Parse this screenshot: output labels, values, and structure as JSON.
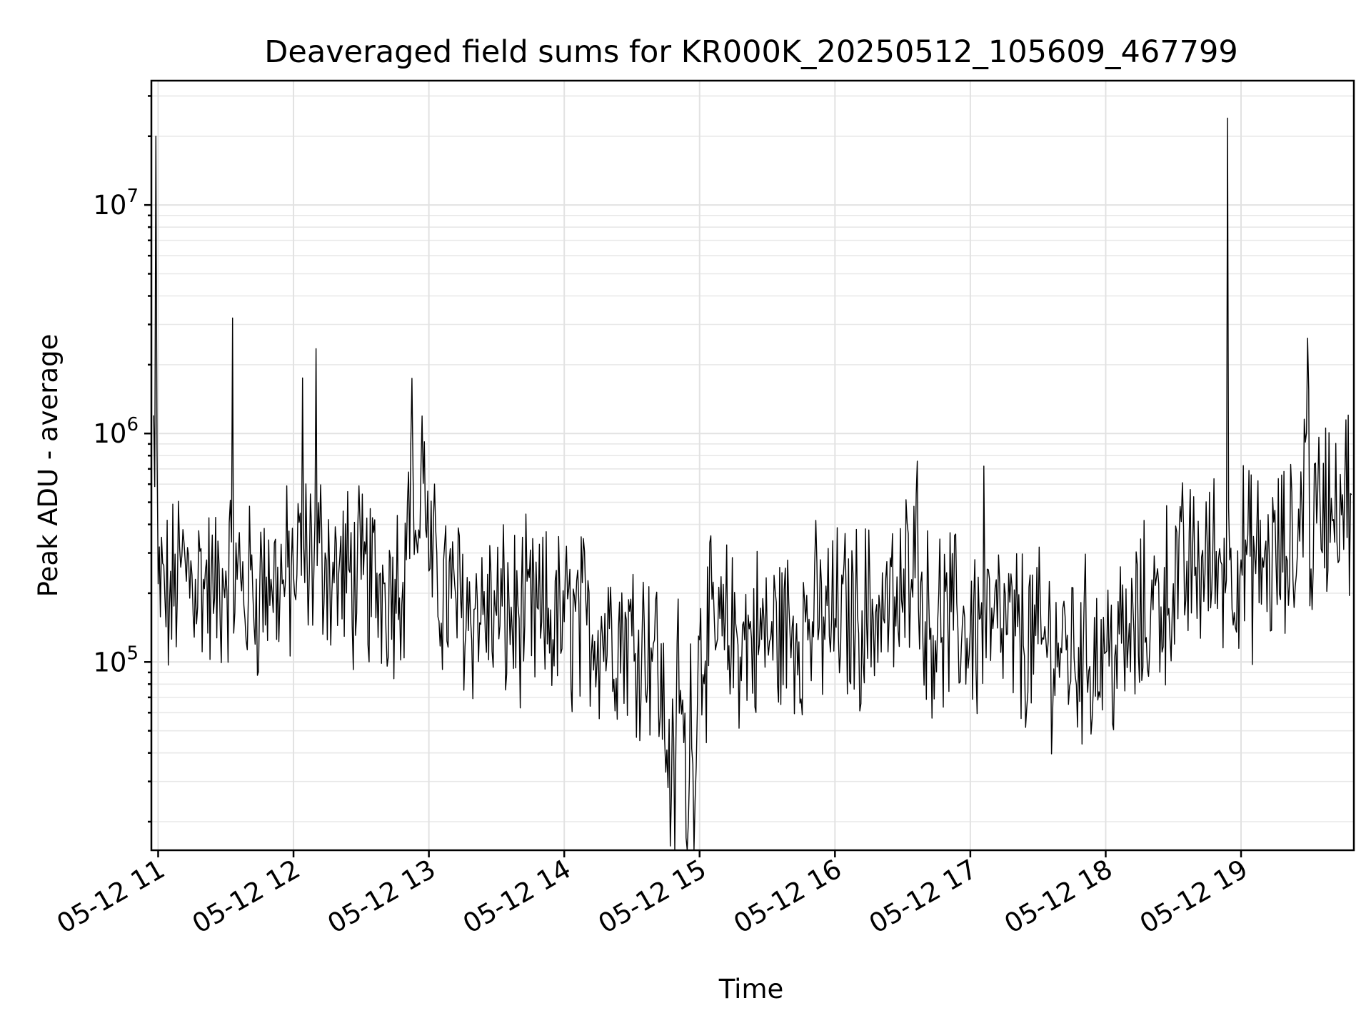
{
  "chart_data": {
    "type": "line",
    "title": "Deaveraged field sums for KR000K_20250512_105609_467799",
    "xlabel": "Time",
    "ylabel": "Peak ADU - average",
    "x_tick_labels": [
      "05-12 11",
      "05-12 12",
      "05-12 13",
      "05-12 14",
      "05-12 15",
      "05-12 16",
      "05-12 17",
      "05-12 18",
      "05-12 19"
    ],
    "xlim": [
      "2025-05-12 10:57",
      "2025-05-12 19:50"
    ],
    "y_scale": "log",
    "ylim": [
      15000,
      35000000
    ],
    "y_ticks": [
      {
        "value": 100000,
        "base": "10",
        "exp": "5"
      },
      {
        "value": 1000000,
        "base": "10",
        "exp": "6"
      },
      {
        "value": 10000000,
        "base": "10",
        "exp": "7"
      }
    ],
    "grid": true,
    "color": "#000000",
    "series": [
      {
        "x": [
          "2025-05-12 10:58",
          "2025-05-12 10:59",
          "2025-05-12 11:00",
          "2025-05-12 11:05",
          "2025-05-12 11:10",
          "2025-05-12 11:15",
          "2025-05-12 11:20",
          "2025-05-12 11:25",
          "2025-05-12 11:30",
          "2025-05-12 11:33",
          "2025-05-12 11:35",
          "2025-05-12 11:40",
          "2025-05-12 11:45",
          "2025-05-12 11:50",
          "2025-05-12 11:55",
          "2025-05-12 12:00",
          "2025-05-12 12:04",
          "2025-05-12 12:06",
          "2025-05-12 12:10",
          "2025-05-12 12:14",
          "2025-05-12 12:16",
          "2025-05-12 12:20",
          "2025-05-12 12:30",
          "2025-05-12 12:40",
          "2025-05-12 12:45",
          "2025-05-12 12:50",
          "2025-05-12 12:52",
          "2025-05-12 12:55",
          "2025-05-12 12:58",
          "2025-05-12 13:00",
          "2025-05-12 13:10",
          "2025-05-12 13:20",
          "2025-05-12 13:30",
          "2025-05-12 13:40",
          "2025-05-12 13:50",
          "2025-05-12 14:00",
          "2025-05-12 14:10",
          "2025-05-12 14:20",
          "2025-05-12 14:30",
          "2025-05-12 14:40",
          "2025-05-12 14:50",
          "2025-05-12 14:55",
          "2025-05-12 14:56",
          "2025-05-12 15:00",
          "2025-05-12 15:10",
          "2025-05-12 15:20",
          "2025-05-12 15:30",
          "2025-05-12 15:40",
          "2025-05-12 15:50",
          "2025-05-12 16:00",
          "2025-05-12 16:10",
          "2025-05-12 16:20",
          "2025-05-12 16:30",
          "2025-05-12 16:35",
          "2025-05-12 16:40",
          "2025-05-12 16:50",
          "2025-05-12 17:00",
          "2025-05-12 17:06",
          "2025-05-12 17:10",
          "2025-05-12 17:20",
          "2025-05-12 17:30",
          "2025-05-12 17:40",
          "2025-05-12 17:50",
          "2025-05-12 18:00",
          "2025-05-12 18:10",
          "2025-05-12 18:20",
          "2025-05-12 18:30",
          "2025-05-12 18:40",
          "2025-05-12 18:50",
          "2025-05-12 18:54",
          "2025-05-12 18:55",
          "2025-05-12 19:00",
          "2025-05-12 19:10",
          "2025-05-12 19:20",
          "2025-05-12 19:25",
          "2025-05-12 19:30",
          "2025-05-12 19:35",
          "2025-05-12 19:40",
          "2025-05-12 19:45",
          "2025-05-12 19:49"
        ],
        "y": [
          1200000,
          20000000,
          220000,
          180000,
          260000,
          240000,
          230000,
          190000,
          250000,
          3200000,
          230000,
          200000,
          210000,
          230000,
          220000,
          240000,
          1750000,
          280000,
          2350000,
          300000,
          260000,
          240000,
          230000,
          220000,
          230000,
          280000,
          900000,
          300000,
          920000,
          250000,
          190000,
          170000,
          160000,
          155000,
          150000,
          150000,
          145000,
          140000,
          130000,
          125000,
          120000,
          20000,
          120000,
          125000,
          130000,
          125000,
          130000,
          140000,
          150000,
          155000,
          160000,
          170000,
          165000,
          480000,
          150000,
          150000,
          140000,
          720000,
          140000,
          130000,
          120000,
          115000,
          110000,
          110000,
          120000,
          170000,
          220000,
          260000,
          280000,
          24000000,
          280000,
          280000,
          260000,
          290000,
          300000,
          1550000,
          500000,
          520000,
          540000,
          540000
        ]
      }
    ]
  }
}
